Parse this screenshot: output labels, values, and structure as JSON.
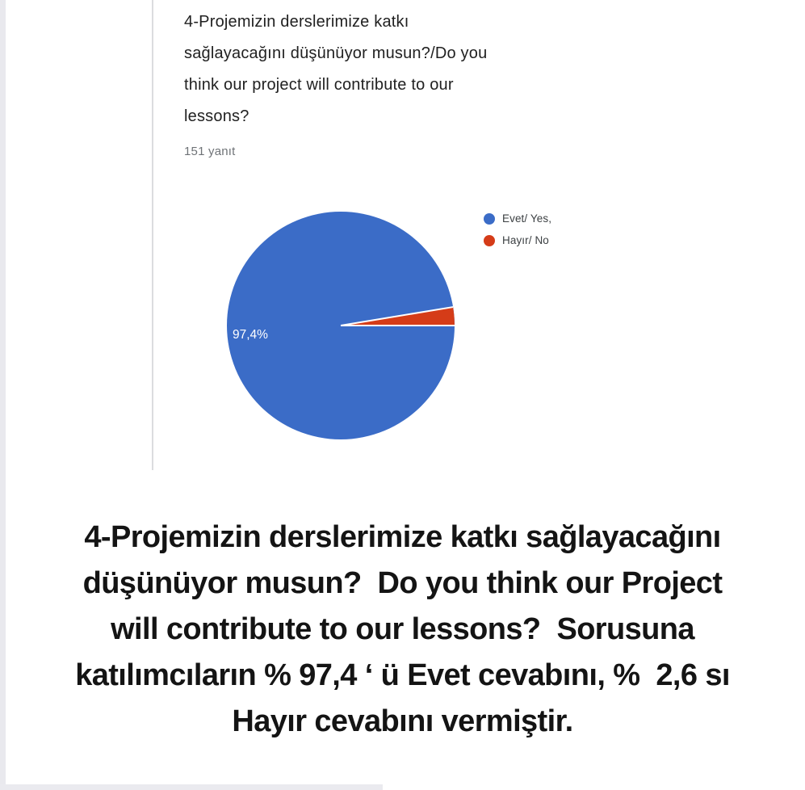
{
  "form_card": {
    "question_title_lines": [
      "4-Projemizin derslerimize katkı",
      "sağlayacağını düşünüyor musun?/Do you",
      "think our project will contribute to our",
      "lessons?"
    ],
    "response_count": "151 yanıt"
  },
  "chart_data": {
    "type": "pie",
    "title": "4-Projemizin derslerimize katkı sağlayacağını düşünüyor musun?/Do you think our project will contribute to our lessons?",
    "subtitle": "151 yanıt",
    "total_responses": 151,
    "labels": [
      "Evet/ Yes,",
      "Hayır/ No"
    ],
    "values": [
      97.4,
      2.6
    ],
    "colors": [
      "#3b6cc7",
      "#d53c18"
    ],
    "slice_label": "97,4%",
    "legend_position": "right",
    "start_angle_deg": 0,
    "separator_color": "#ffffff"
  },
  "summary": {
    "lines": [
      "4-Projemizin derslerimize katkı sağlayacağını",
      "düşünüyor musun?  Do you think our Project",
      "will contribute to our lessons?  Sorusuna",
      "katılımcıların % 97,4 ‘ ü Evet cevabını, %  2,6 sı",
      "Hayır cevabını vermiştir."
    ]
  }
}
